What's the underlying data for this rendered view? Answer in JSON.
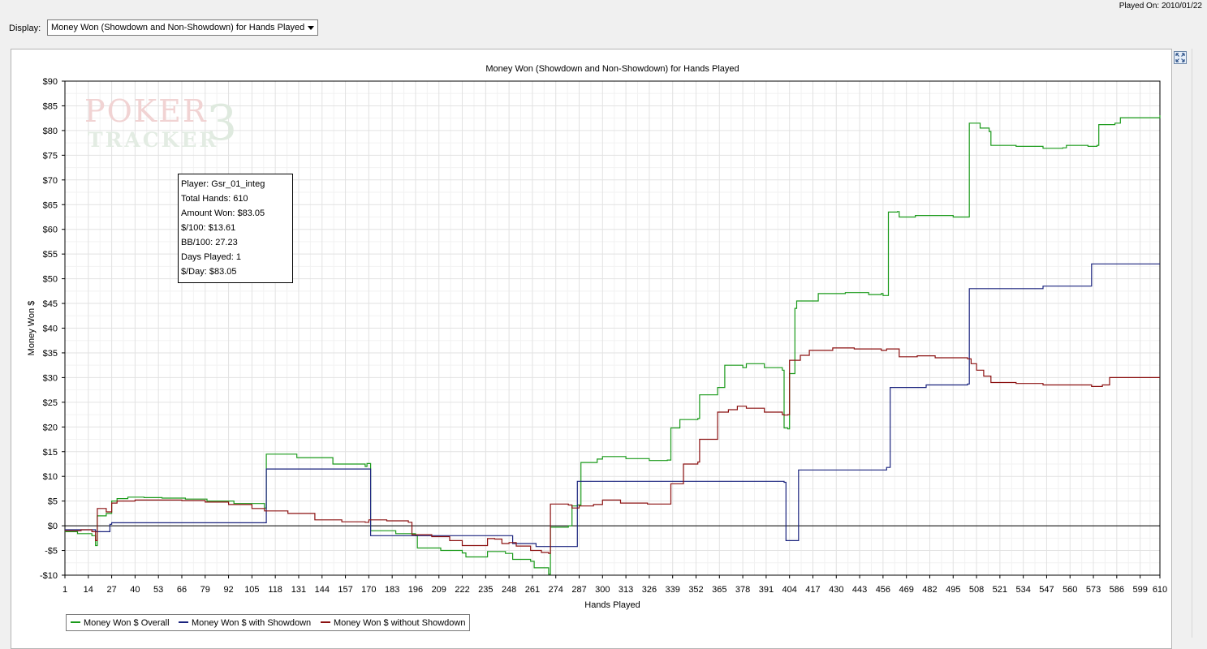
{
  "played_on": "Played On: 2010/01/22",
  "display": {
    "label": "Display:",
    "selected": "Money Won (Showdown and Non-Showdown) for Hands Played"
  },
  "watermark": {
    "line1": "POKER",
    "line2": "TRACKER",
    "mark": "3"
  },
  "stats": {
    "player": "Player: Gsr_01_integ",
    "total_hands": "Total Hands: 610",
    "amount_won": "Amount Won: $83.05",
    "per_100": "$/100: $13.61",
    "bb_100": "BB/100: 27.23",
    "days_played": "Days Played: 1",
    "per_day": "$/Day: $83.05"
  },
  "chart_data": {
    "type": "line",
    "title": "Money Won (Showdown and Non-Showdown) for Hands Played",
    "xlabel": "Hands Played",
    "ylabel": "Money Won $",
    "xlim": [
      1,
      610
    ],
    "ylim": [
      -10,
      90
    ],
    "x_ticks": [
      1,
      14,
      27,
      40,
      53,
      66,
      79,
      92,
      105,
      118,
      131,
      144,
      157,
      170,
      183,
      196,
      209,
      222,
      235,
      248,
      261,
      274,
      287,
      300,
      313,
      326,
      339,
      352,
      365,
      378,
      391,
      404,
      417,
      430,
      443,
      456,
      469,
      482,
      495,
      508,
      521,
      534,
      547,
      560,
      573,
      586,
      599,
      610
    ],
    "y_ticks": [
      -10,
      -5,
      0,
      5,
      10,
      15,
      20,
      25,
      30,
      35,
      40,
      45,
      50,
      55,
      60,
      65,
      70,
      75,
      80,
      85,
      90
    ],
    "y_tick_labels": [
      "-$10",
      "-$5",
      "$0",
      "$5",
      "$10",
      "$15",
      "$20",
      "$25",
      "$30",
      "$35",
      "$40",
      "$45",
      "$50",
      "$55",
      "$60",
      "$65",
      "$70",
      "$75",
      "$80",
      "$85",
      "$90"
    ],
    "grid": true,
    "legend_position": "bottom-left",
    "series": [
      {
        "name": "Money Won $ Overall",
        "color": "#1a9a1a",
        "points": [
          [
            1,
            -1.2
          ],
          [
            8,
            -1.6
          ],
          [
            16,
            -2
          ],
          [
            18,
            -4
          ],
          [
            19,
            2
          ],
          [
            24,
            2.5
          ],
          [
            27,
            5
          ],
          [
            30,
            5.5
          ],
          [
            36,
            5.8
          ],
          [
            45,
            5.7
          ],
          [
            55,
            5.6
          ],
          [
            68,
            5.4
          ],
          [
            80,
            5.0
          ],
          [
            95,
            4.5
          ],
          [
            112,
            3.6
          ],
          [
            113,
            14.5
          ],
          [
            130,
            13.8
          ],
          [
            150,
            12.5
          ],
          [
            168,
            12
          ],
          [
            169,
            12.6
          ],
          [
            171,
            -1
          ],
          [
            185,
            -1.6
          ],
          [
            196,
            -2
          ],
          [
            197,
            -4.5
          ],
          [
            210,
            -5
          ],
          [
            222,
            -5.5
          ],
          [
            224,
            -6.3
          ],
          [
            234,
            -6.3
          ],
          [
            236,
            -5.2
          ],
          [
            246,
            -5.6
          ],
          [
            250,
            -6.8
          ],
          [
            260,
            -7.2
          ],
          [
            262,
            -8.5
          ],
          [
            270,
            -9.8
          ],
          [
            271,
            -0.3
          ],
          [
            281,
            0
          ],
          [
            283,
            4
          ],
          [
            286,
            4.2
          ],
          [
            288,
            12.8
          ],
          [
            297,
            13.5
          ],
          [
            300,
            14
          ],
          [
            313,
            13.6
          ],
          [
            326,
            13.2
          ],
          [
            336,
            13.3
          ],
          [
            338,
            19.8
          ],
          [
            343,
            21.5
          ],
          [
            353,
            21.7
          ],
          [
            354,
            26.5
          ],
          [
            361,
            26.5
          ],
          [
            364,
            28
          ],
          [
            368,
            32.5
          ],
          [
            378,
            32
          ],
          [
            380,
            32.8
          ],
          [
            390,
            32
          ],
          [
            400,
            31.5
          ],
          [
            401,
            19.8
          ],
          [
            403,
            19.6
          ],
          [
            404,
            30.8
          ],
          [
            406,
            30.8
          ],
          [
            407,
            44
          ],
          [
            408,
            45.5
          ],
          [
            420,
            47
          ],
          [
            435,
            47.2
          ],
          [
            448,
            46.8
          ],
          [
            455,
            47
          ],
          [
            456,
            46.6
          ],
          [
            459,
            63.5
          ],
          [
            464,
            63.6
          ],
          [
            465,
            62.5
          ],
          [
            474,
            62.8
          ],
          [
            485,
            62.8
          ],
          [
            495,
            62.5
          ],
          [
            503,
            62.5
          ],
          [
            504,
            81.5
          ],
          [
            510,
            80.5
          ],
          [
            515,
            79.8
          ],
          [
            516,
            77
          ],
          [
            530,
            76.8
          ],
          [
            545,
            76.4
          ],
          [
            556,
            76.5
          ],
          [
            558,
            77
          ],
          [
            570,
            76.8
          ],
          [
            575,
            77
          ],
          [
            576,
            81.2
          ],
          [
            585,
            81.5
          ],
          [
            588,
            82.6
          ],
          [
            600,
            82.6
          ],
          [
            610,
            83.1
          ]
        ]
      },
      {
        "name": "Money Won $ with Showdown",
        "color": "#1a237e",
        "points": [
          [
            1,
            -0.8
          ],
          [
            18,
            -1.2
          ],
          [
            26,
            0.3
          ],
          [
            27,
            0.6
          ],
          [
            60,
            0.6
          ],
          [
            112,
            0.6
          ],
          [
            113,
            11.5
          ],
          [
            170,
            11.5
          ],
          [
            171,
            -2
          ],
          [
            196,
            -2
          ],
          [
            248,
            -2
          ],
          [
            250,
            -3.6
          ],
          [
            262,
            -3.6
          ],
          [
            263,
            -4.2
          ],
          [
            280,
            -4.2
          ],
          [
            284,
            -4.2
          ],
          [
            286,
            9
          ],
          [
            380,
            9
          ],
          [
            401,
            8.8
          ],
          [
            402,
            -3
          ],
          [
            408,
            -3
          ],
          [
            409,
            11.3
          ],
          [
            455,
            11.3
          ],
          [
            458,
            11.8
          ],
          [
            460,
            28
          ],
          [
            480,
            28.5
          ],
          [
            503,
            28.7
          ],
          [
            504,
            48
          ],
          [
            540,
            48
          ],
          [
            545,
            48.5
          ],
          [
            570,
            48.5
          ],
          [
            572,
            53
          ],
          [
            610,
            53
          ]
        ]
      },
      {
        "name": "Money Won $ without Showdown",
        "color": "#8b1010",
        "points": [
          [
            1,
            -1
          ],
          [
            10,
            -0.8
          ],
          [
            16,
            -1.2
          ],
          [
            18,
            -3
          ],
          [
            19,
            3.5
          ],
          [
            24,
            2.8
          ],
          [
            27,
            4.6
          ],
          [
            30,
            5
          ],
          [
            40,
            5.2
          ],
          [
            53,
            5.2
          ],
          [
            66,
            5.1
          ],
          [
            79,
            4.8
          ],
          [
            92,
            4.3
          ],
          [
            105,
            3.5
          ],
          [
            112,
            3
          ],
          [
            125,
            2.5
          ],
          [
            140,
            1.2
          ],
          [
            155,
            0.8
          ],
          [
            168,
            0.7
          ],
          [
            170,
            1.2
          ],
          [
            180,
            1
          ],
          [
            192,
            0.7
          ],
          [
            194,
            -1.8
          ],
          [
            205,
            -2.2
          ],
          [
            215,
            -3
          ],
          [
            222,
            -4
          ],
          [
            235,
            -4
          ],
          [
            236,
            -2.6
          ],
          [
            240,
            -2.7
          ],
          [
            244,
            -3.6
          ],
          [
            248,
            -3.4
          ],
          [
            252,
            -4.1
          ],
          [
            260,
            -5
          ],
          [
            266,
            -5.4
          ],
          [
            270,
            -5.6
          ],
          [
            271,
            4.4
          ],
          [
            281,
            4.2
          ],
          [
            283,
            3.6
          ],
          [
            287,
            4
          ],
          [
            295,
            4.3
          ],
          [
            300,
            5.2
          ],
          [
            310,
            4.6
          ],
          [
            325,
            4.4
          ],
          [
            337,
            4.4
          ],
          [
            338,
            8.5
          ],
          [
            345,
            12.5
          ],
          [
            353,
            12.9
          ],
          [
            354,
            17.5
          ],
          [
            360,
            17.5
          ],
          [
            364,
            23
          ],
          [
            370,
            23.5
          ],
          [
            375,
            24.2
          ],
          [
            380,
            23.8
          ],
          [
            390,
            23
          ],
          [
            400,
            22.5
          ],
          [
            401,
            22.4
          ],
          [
            403,
            22.5
          ],
          [
            404,
            33.5
          ],
          [
            410,
            34.5
          ],
          [
            415,
            35.5
          ],
          [
            428,
            36
          ],
          [
            440,
            35.8
          ],
          [
            455,
            35.5
          ],
          [
            458,
            35.8
          ],
          [
            465,
            34.2
          ],
          [
            475,
            34.4
          ],
          [
            485,
            34
          ],
          [
            495,
            34
          ],
          [
            503,
            33.8
          ],
          [
            505,
            32.8
          ],
          [
            508,
            31.5
          ],
          [
            512,
            30.3
          ],
          [
            516,
            29
          ],
          [
            530,
            28.8
          ],
          [
            545,
            28.5
          ],
          [
            560,
            28.5
          ],
          [
            572,
            28.2
          ],
          [
            578,
            28.5
          ],
          [
            582,
            30
          ],
          [
            610,
            30
          ]
        ]
      }
    ]
  }
}
